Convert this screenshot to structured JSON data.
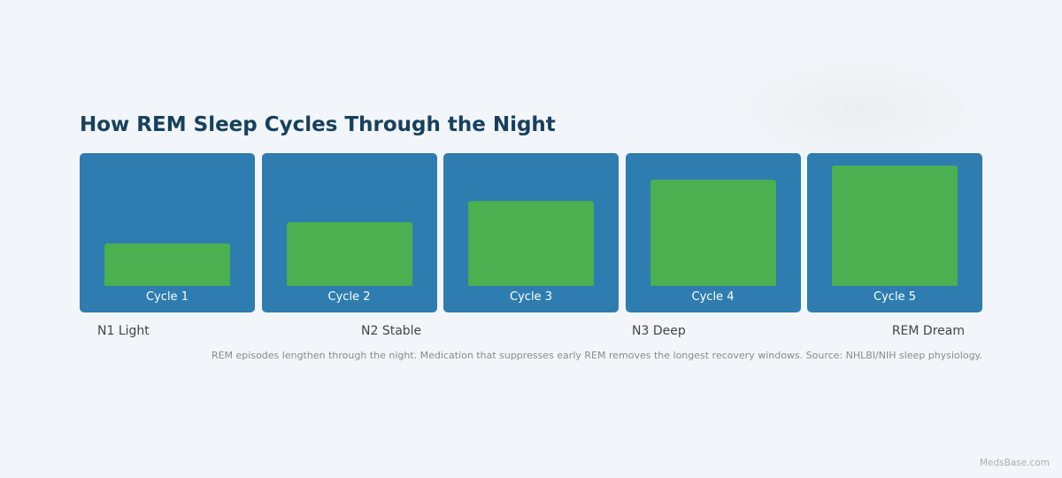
{
  "title": "How REM Sleep Cycles Through the Night",
  "chart_data": {
    "type": "bar",
    "categories": [
      "Cycle 1",
      "Cycle 2",
      "Cycle 3",
      "Cycle 4",
      "Cycle 5"
    ],
    "values": [
      1,
      1.5,
      2,
      2.5,
      2.84
    ],
    "ylim": [
      0,
      3.13
    ],
    "colors": {
      "panel": "#2e7cb0",
      "bar": "#4caf50"
    },
    "legend": [
      "N1 Light",
      "N2 Stable",
      "N3 Deep",
      "REM Dream"
    ],
    "note": "REM episodes lengthen through the night. Medication that suppresses early REM removes the longest recovery windows. Source: NHLBI/NIH sleep physiology."
  },
  "brand": "MedsBase.com"
}
